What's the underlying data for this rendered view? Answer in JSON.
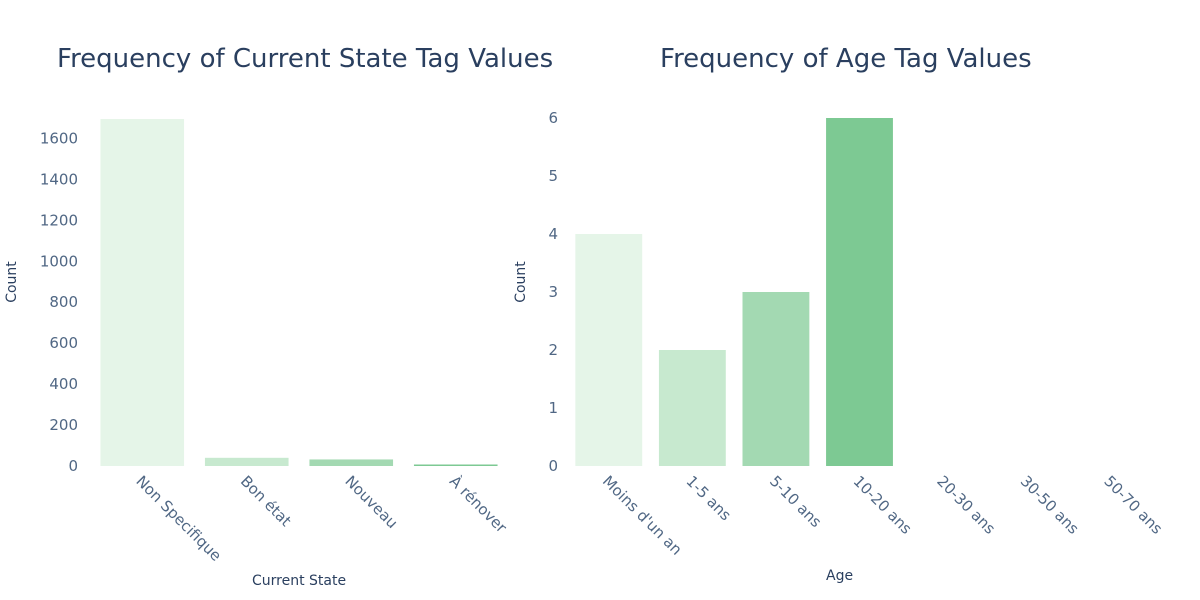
{
  "chart_data": [
    {
      "type": "bar",
      "title": "Frequency of Current State Tag Values",
      "xlabel": "Current State",
      "ylabel": "Count",
      "categories": [
        "Non Specifique",
        "Bon état",
        "Nouveau",
        "À rénover"
      ],
      "values": [
        1695,
        40,
        32,
        5
      ],
      "colors": [
        "#e5f5e8",
        "#c7e9cf",
        "#a3d9b2",
        "#7dc993"
      ],
      "ylim": [
        0,
        1700
      ],
      "yticks": [
        0,
        200,
        400,
        600,
        800,
        1000,
        1200,
        1400,
        1600
      ],
      "grid": false
    },
    {
      "type": "bar",
      "title": "Frequency of Age Tag Values",
      "xlabel": "Age",
      "ylabel": "Count",
      "categories": [
        "Moins d'un an",
        "1-5 ans",
        "5-10 ans",
        "10-20 ans",
        "20-30 ans",
        "30-50 ans",
        "50-70 ans"
      ],
      "values": [
        4,
        2,
        3,
        6,
        0,
        0,
        0
      ],
      "colors": [
        "#e5f5e8",
        "#c7e9cf",
        "#a3d9b2",
        "#7dc993",
        "#7dc993",
        "#7dc993",
        "#7dc993"
      ],
      "ylim": [
        0,
        6
      ],
      "yticks": [
        0,
        1,
        2,
        3,
        4,
        5,
        6
      ],
      "grid": false
    }
  ]
}
